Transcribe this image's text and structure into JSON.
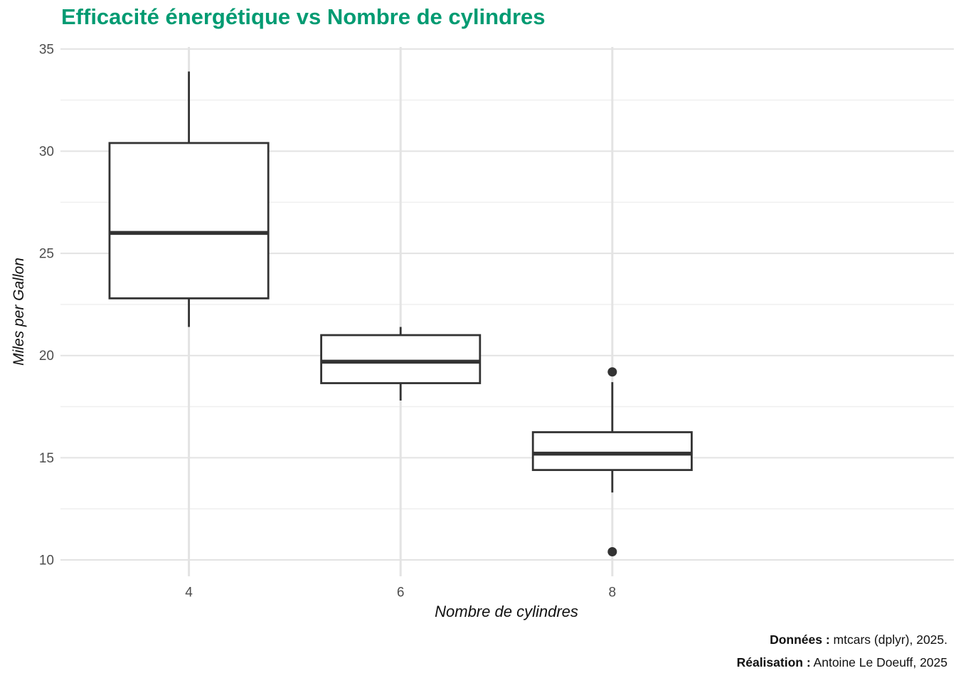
{
  "title": "Efficacité énergétique vs Nombre de cylindres",
  "caption": {
    "line1_label": "Données :",
    "line1_text": " mtcars (dplyr), 2025.",
    "line2_label": "Réalisation :",
    "line2_text": " Antoine Le Doeuff, 2025"
  },
  "colors": {
    "title_green": "#009B72",
    "box_stroke": "#333333",
    "box_fill": "#ffffff",
    "grid_major": "#e3e3e3",
    "grid_minor": "#f0f0f0",
    "tick_label": "#4d4d4d",
    "axis_title": "#111111",
    "background": "#ffffff"
  },
  "chart_data": {
    "type": "boxplot",
    "title": "Efficacité énergétique vs Nombre de cylindres",
    "xlabel": "Nombre de cylindres",
    "ylabel": "Miles per Gallon",
    "categories": [
      "4",
      "6",
      "8"
    ],
    "ylim": [
      9.2,
      35.1
    ],
    "yticks": [
      10,
      15,
      20,
      25,
      30,
      35
    ],
    "yminorticks": [
      12.5,
      17.5,
      22.5,
      27.5,
      32.5
    ],
    "grid": "horizontal major+minor, vertical major only",
    "legend": "none",
    "series": [
      {
        "category": "4",
        "whisker_low": 21.4,
        "q1": 22.8,
        "median": 26.0,
        "q3": 30.4,
        "whisker_high": 33.9,
        "outliers": []
      },
      {
        "category": "6",
        "whisker_low": 17.8,
        "q1": 18.65,
        "median": 19.7,
        "q3": 21.0,
        "whisker_high": 21.4,
        "outliers": []
      },
      {
        "category": "8",
        "whisker_low": 13.3,
        "q1": 14.4,
        "median": 15.2,
        "q3": 16.25,
        "whisker_high": 18.7,
        "outliers": [
          19.2,
          10.4
        ]
      }
    ]
  }
}
